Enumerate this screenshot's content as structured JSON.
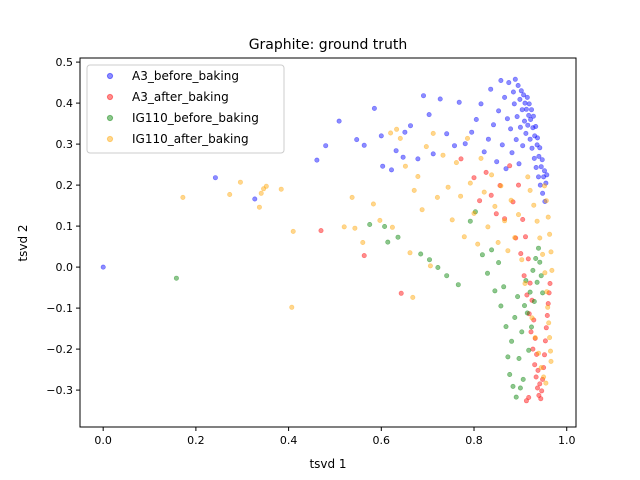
{
  "chart_data": {
    "type": "scatter",
    "title": "Graphite: ground truth",
    "xlabel": "tsvd 1",
    "ylabel": "tsvd 2",
    "xlim": [
      -0.05,
      1.02
    ],
    "ylim": [
      -0.39,
      0.51
    ],
    "xticks": [
      "0.0",
      "0.2",
      "0.4",
      "0.6",
      "0.8",
      "1.0"
    ],
    "xtick_values": [
      0.0,
      0.2,
      0.4,
      0.6,
      0.8,
      1.0
    ],
    "yticks": [
      "−0.3",
      "−0.2",
      "−0.1",
      "0.0",
      "0.1",
      "0.2",
      "0.3",
      "0.4",
      "0.5"
    ],
    "ytick_values": [
      -0.3,
      -0.2,
      -0.1,
      0.0,
      0.1,
      0.2,
      0.3,
      0.4,
      0.5
    ],
    "grid": false,
    "legend_position": "top-left",
    "marker_opacity": 0.45,
    "series": [
      {
        "name": "A3_before_baking",
        "color": "#0000ff",
        "points": [
          [
            0.0,
            0.0
          ],
          [
            0.242,
            0.218
          ],
          [
            0.327,
            0.166
          ],
          [
            0.461,
            0.261
          ],
          [
            0.48,
            0.296
          ],
          [
            0.509,
            0.356
          ],
          [
            0.547,
            0.311
          ],
          [
            0.563,
            0.297
          ],
          [
            0.585,
            0.387
          ],
          [
            0.6,
            0.32
          ],
          [
            0.603,
            0.246
          ],
          [
            0.622,
            0.237
          ],
          [
            0.632,
            0.284
          ],
          [
            0.647,
            0.268
          ],
          [
            0.651,
            0.329
          ],
          [
            0.663,
            0.345
          ],
          [
            0.679,
            0.264
          ],
          [
            0.691,
            0.418
          ],
          [
            0.703,
            0.372
          ],
          [
            0.712,
            0.276
          ],
          [
            0.727,
            0.41
          ],
          [
            0.741,
            0.325
          ],
          [
            0.758,
            0.296
          ],
          [
            0.768,
            0.402
          ],
          [
            0.781,
            0.301
          ],
          [
            0.795,
            0.329
          ],
          [
            0.805,
            0.36
          ],
          [
            0.815,
            0.398
          ],
          [
            0.822,
            0.281
          ],
          [
            0.831,
            0.312
          ],
          [
            0.836,
            0.434
          ],
          [
            0.842,
            0.347
          ],
          [
            0.849,
            0.257
          ],
          [
            0.853,
            0.381
          ],
          [
            0.858,
            0.455
          ],
          [
            0.861,
            0.298
          ],
          [
            0.866,
            0.414
          ],
          [
            0.869,
            0.24
          ],
          [
            0.872,
            0.362
          ],
          [
            0.875,
            0.45
          ],
          [
            0.879,
            0.337
          ],
          [
            0.882,
            0.279
          ],
          [
            0.885,
            0.427
          ],
          [
            0.887,
            0.398
          ],
          [
            0.889,
            0.458
          ],
          [
            0.891,
            0.311
          ],
          [
            0.893,
            0.367
          ],
          [
            0.895,
            0.443
          ],
          [
            0.897,
            0.252
          ],
          [
            0.899,
            0.409
          ],
          [
            0.9,
            0.341
          ],
          [
            0.902,
            0.43
          ],
          [
            0.904,
            0.384
          ],
          [
            0.905,
            0.296
          ],
          [
            0.907,
            0.42
          ],
          [
            0.909,
            0.356
          ],
          [
            0.91,
            0.4
          ],
          [
            0.912,
            0.326
          ],
          [
            0.913,
            0.385
          ],
          [
            0.915,
            0.414
          ],
          [
            0.916,
            0.346
          ],
          [
            0.918,
            0.37
          ],
          [
            0.919,
            0.398
          ],
          [
            0.921,
            0.312
          ],
          [
            0.922,
            0.36
          ],
          [
            0.924,
            0.384
          ],
          [
            0.925,
            0.29
          ],
          [
            0.927,
            0.34
          ],
          [
            0.928,
            0.368
          ],
          [
            0.93,
            0.265
          ],
          [
            0.931,
            0.32
          ],
          [
            0.933,
            0.343
          ],
          [
            0.934,
            0.243
          ],
          [
            0.936,
            0.298
          ],
          [
            0.937,
            0.315
          ],
          [
            0.939,
            0.22
          ],
          [
            0.94,
            0.27
          ],
          [
            0.942,
            0.291
          ],
          [
            0.943,
            0.2
          ],
          [
            0.945,
            0.245
          ],
          [
            0.947,
            0.262
          ],
          [
            0.948,
            0.18
          ],
          [
            0.95,
            0.22
          ],
          [
            0.952,
            0.235
          ],
          [
            0.953,
            0.16
          ],
          [
            0.955,
            0.205
          ],
          [
            0.957,
            0.225
          ]
        ]
      },
      {
        "name": "A3_after_baking",
        "color": "#ff0000",
        "points": [
          [
            0.47,
            0.089
          ],
          [
            0.563,
            0.028
          ],
          [
            0.643,
            -0.064
          ],
          [
            0.772,
            0.264
          ],
          [
            0.8,
            0.218
          ],
          [
            0.812,
            0.162
          ],
          [
            0.826,
            0.231
          ],
          [
            0.837,
            0.175
          ],
          [
            0.848,
            0.13
          ],
          [
            0.856,
            0.199
          ],
          [
            0.866,
            0.118
          ],
          [
            0.877,
            0.247
          ],
          [
            0.884,
            0.159
          ],
          [
            0.89,
            0.071
          ],
          [
            0.896,
            0.2
          ],
          [
            0.901,
            0.033
          ],
          [
            0.905,
            0.116
          ],
          [
            0.908,
            -0.021
          ],
          [
            0.911,
            0.074
          ],
          [
            0.914,
            -0.068
          ],
          [
            0.917,
            0.02
          ],
          [
            0.919,
            -0.114
          ],
          [
            0.921,
            -0.039
          ],
          [
            0.923,
            -0.158
          ],
          [
            0.925,
            -0.081
          ],
          [
            0.927,
            -0.2
          ],
          [
            0.929,
            -0.129
          ],
          [
            0.931,
            -0.238
          ],
          [
            0.932,
            -0.174
          ],
          [
            0.934,
            -0.268
          ],
          [
            0.935,
            -0.213
          ],
          [
            0.937,
            -0.295
          ],
          [
            0.938,
            -0.252
          ],
          [
            0.94,
            -0.313
          ],
          [
            0.942,
            -0.285
          ],
          [
            0.944,
            -0.321
          ],
          [
            0.946,
            -0.302
          ],
          [
            0.948,
            -0.274
          ],
          [
            0.95,
            -0.245
          ],
          [
            0.952,
            -0.214
          ],
          [
            0.954,
            -0.18
          ],
          [
            0.956,
            -0.148
          ],
          [
            0.958,
            -0.118
          ],
          [
            0.96,
            -0.089
          ],
          [
            0.962,
            -0.063
          ],
          [
            0.964,
            -0.04
          ],
          [
            0.913,
            -0.326
          ],
          [
            0.918,
            -0.318
          ]
        ]
      },
      {
        "name": "IG110_before_baking",
        "color": "#008000",
        "points": [
          [
            0.158,
            -0.027
          ],
          [
            0.575,
            0.104
          ],
          [
            0.607,
            0.099
          ],
          [
            0.614,
            0.061
          ],
          [
            0.636,
            0.073
          ],
          [
            0.685,
            0.032
          ],
          [
            0.704,
            0.018
          ],
          [
            0.722,
            -0.001
          ],
          [
            0.741,
            -0.021
          ],
          [
            0.766,
            -0.043
          ],
          [
            0.792,
            0.112
          ],
          [
            0.803,
            0.135
          ],
          [
            0.818,
            0.03
          ],
          [
            0.829,
            -0.015
          ],
          [
            0.838,
            0.042
          ],
          [
            0.845,
            -0.058
          ],
          [
            0.853,
            0.011
          ],
          [
            0.858,
            -0.095
          ],
          [
            0.864,
            -0.048
          ],
          [
            0.869,
            -0.145
          ],
          [
            0.873,
            -0.219
          ],
          [
            0.877,
            -0.262
          ],
          [
            0.881,
            -0.181
          ],
          [
            0.884,
            -0.291
          ],
          [
            0.888,
            -0.123
          ],
          [
            0.891,
            -0.317
          ],
          [
            0.894,
            -0.072
          ],
          [
            0.897,
            -0.223
          ],
          [
            0.9,
            -0.295
          ],
          [
            0.903,
            -0.158
          ],
          [
            0.906,
            -0.274
          ],
          [
            0.909,
            -0.094
          ],
          [
            0.912,
            -0.033
          ],
          [
            0.915,
            -0.112
          ],
          [
            0.918,
            -0.203
          ],
          [
            0.921,
            -0.061
          ],
          [
            0.924,
            -0.146
          ],
          [
            0.927,
            -0.008
          ],
          [
            0.93,
            -0.084
          ],
          [
            0.933,
            0.021
          ],
          [
            0.936,
            -0.037
          ],
          [
            0.939,
            0.046
          ],
          [
            0.942,
            0.012
          ],
          [
            0.945,
            -0.021
          ],
          [
            0.948,
            -0.063
          ]
        ]
      },
      {
        "name": "IG110_after_baking",
        "color": "#ffa500",
        "points": [
          [
            0.172,
            0.17
          ],
          [
            0.273,
            0.177
          ],
          [
            0.296,
            0.207
          ],
          [
            0.337,
            0.146
          ],
          [
            0.341,
            0.18
          ],
          [
            0.346,
            0.191
          ],
          [
            0.352,
            0.197
          ],
          [
            0.384,
            0.19
          ],
          [
            0.407,
            -0.098
          ],
          [
            0.41,
            0.087
          ],
          [
            0.52,
            0.098
          ],
          [
            0.537,
            0.17
          ],
          [
            0.543,
            0.095
          ],
          [
            0.56,
            0.06
          ],
          [
            0.583,
            0.154
          ],
          [
            0.597,
            0.114
          ],
          [
            0.62,
            0.327
          ],
          [
            0.624,
            0.097
          ],
          [
            0.633,
            0.336
          ],
          [
            0.641,
            0.314
          ],
          [
            0.652,
            0.246
          ],
          [
            0.662,
            0.035
          ],
          [
            0.668,
            -0.074
          ],
          [
            0.671,
            0.187
          ],
          [
            0.679,
            0.221
          ],
          [
            0.688,
            0.14
          ],
          [
            0.697,
            0.294
          ],
          [
            0.706,
            0.003
          ],
          [
            0.712,
            0.326
          ],
          [
            0.721,
            0.17
          ],
          [
            0.733,
            0.273
          ],
          [
            0.744,
            0.195
          ],
          [
            0.753,
            0.115
          ],
          [
            0.762,
            0.255
          ],
          [
            0.771,
            0.173
          ],
          [
            0.779,
            0.074
          ],
          [
            0.786,
            0.314
          ],
          [
            0.792,
            0.205
          ],
          [
            0.8,
            0.131
          ],
          [
            0.808,
            0.056
          ],
          [
            0.815,
            0.265
          ],
          [
            0.822,
            0.183
          ],
          [
            0.83,
            0.098
          ],
          [
            0.838,
            0.225
          ],
          [
            0.845,
            0.148
          ],
          [
            0.852,
            0.06
          ],
          [
            0.858,
            0.198
          ],
          [
            0.866,
            0.113
          ],
          [
            0.873,
            0.04
          ],
          [
            0.88,
            0.163
          ],
          [
            0.888,
            0.072
          ],
          [
            0.896,
            0.128
          ],
          [
            0.903,
            0.018
          ],
          [
            0.91,
            -0.04
          ],
          [
            0.916,
            0.22
          ],
          [
            0.921,
            0.187
          ],
          [
            0.925,
            -0.124
          ],
          [
            0.929,
            0.151
          ],
          [
            0.932,
            -0.172
          ],
          [
            0.936,
            0.112
          ],
          [
            0.939,
            -0.21
          ],
          [
            0.942,
            0.071
          ],
          [
            0.945,
            -0.245
          ],
          [
            0.948,
            0.031
          ],
          [
            0.95,
            -0.268
          ],
          [
            0.953,
            -0.014
          ],
          [
            0.955,
            -0.283
          ],
          [
            0.957,
            -0.06
          ],
          [
            0.959,
            -0.098
          ],
          [
            0.961,
            -0.136
          ],
          [
            0.963,
            -0.172
          ],
          [
            0.965,
            -0.205
          ],
          [
            0.966,
            -0.23
          ],
          [
            0.952,
            0.198
          ],
          [
            0.956,
            0.162
          ],
          [
            0.96,
            0.122
          ],
          [
            0.963,
            0.08
          ],
          [
            0.966,
            0.037
          ],
          [
            0.968,
            -0.008
          ]
        ]
      }
    ]
  }
}
